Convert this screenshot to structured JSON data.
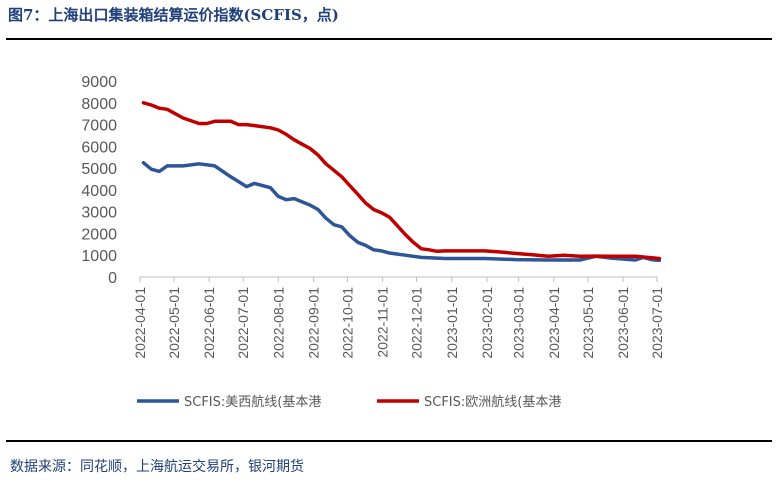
{
  "header": {
    "title": "图7：上海出口集装箱结算运价指数(SCFIS，点)"
  },
  "footer": {
    "source": "数据来源：同花顺，上海航运交易所，银河期货"
  },
  "colors": {
    "series_us_west": "#2e5597",
    "series_europe": "#c00000",
    "axis": "#bfbfbf",
    "text": "#595959"
  },
  "chart_data": {
    "type": "line",
    "title": "图7：上海出口集装箱结算运价指数(SCFIS，点)",
    "xlabel": "",
    "ylabel": "",
    "ylim": [
      0,
      9000
    ],
    "yticks": [
      "0",
      "1000",
      "2000",
      "3000",
      "4000",
      "5000",
      "6000",
      "7000",
      "8000",
      "9000"
    ],
    "grid": false,
    "legend_position": "bottom",
    "x_tick_labels": [
      "2022-04-01",
      "2022-05-01",
      "2022-06-01",
      "2022-07-01",
      "2022-08-01",
      "2022-09-01",
      "2022-10-01",
      "2022-11-01",
      "2022-12-01",
      "2023-01-01",
      "2023-02-01",
      "2023-03-01",
      "2023-04-01",
      "2023-05-01",
      "2023-06-01",
      "2023-07-01"
    ],
    "x_start": "2022-04-01",
    "x_end": "2023-07-01",
    "series": [
      {
        "name": "SCFIS:美西航线(基本港",
        "color": "#2e5597",
        "points": [
          [
            "2022-04-04",
            5250
          ],
          [
            "2022-04-11",
            4950
          ],
          [
            "2022-04-18",
            4850
          ],
          [
            "2022-04-25",
            5100
          ],
          [
            "2022-05-09",
            5100
          ],
          [
            "2022-05-23",
            5200
          ],
          [
            "2022-06-06",
            5100
          ],
          [
            "2022-06-20",
            4600
          ],
          [
            "2022-07-04",
            4150
          ],
          [
            "2022-07-11",
            4300
          ],
          [
            "2022-07-25",
            4100
          ],
          [
            "2022-08-01",
            3700
          ],
          [
            "2022-08-08",
            3550
          ],
          [
            "2022-08-15",
            3600
          ],
          [
            "2022-08-29",
            3300
          ],
          [
            "2022-09-05",
            3100
          ],
          [
            "2022-09-12",
            2700
          ],
          [
            "2022-09-19",
            2400
          ],
          [
            "2022-09-26",
            2300
          ],
          [
            "2022-10-03",
            1900
          ],
          [
            "2022-10-10",
            1600
          ],
          [
            "2022-10-17",
            1450
          ],
          [
            "2022-10-24",
            1250
          ],
          [
            "2022-10-31",
            1200
          ],
          [
            "2022-11-07",
            1100
          ],
          [
            "2022-11-21",
            1000
          ],
          [
            "2022-12-05",
            900
          ],
          [
            "2022-12-26",
            850
          ],
          [
            "2023-01-30",
            850
          ],
          [
            "2023-02-27",
            800
          ],
          [
            "2023-03-27",
            780
          ],
          [
            "2023-04-24",
            780
          ],
          [
            "2023-05-08",
            950
          ],
          [
            "2023-05-22",
            870
          ],
          [
            "2023-06-12",
            780
          ],
          [
            "2023-06-19",
            900
          ],
          [
            "2023-06-26",
            800
          ],
          [
            "2023-07-03",
            760
          ]
        ]
      },
      {
        "name": "SCFIS:欧洲航线(基本港",
        "color": "#c00000",
        "points": [
          [
            "2022-04-04",
            8000
          ],
          [
            "2022-04-11",
            7900
          ],
          [
            "2022-04-18",
            7750
          ],
          [
            "2022-04-25",
            7700
          ],
          [
            "2022-05-09",
            7300
          ],
          [
            "2022-05-23",
            7050
          ],
          [
            "2022-05-30",
            7050
          ],
          [
            "2022-06-06",
            7150
          ],
          [
            "2022-06-20",
            7150
          ],
          [
            "2022-06-27",
            7000
          ],
          [
            "2022-07-04",
            7000
          ],
          [
            "2022-07-11",
            6950
          ],
          [
            "2022-07-25",
            6850
          ],
          [
            "2022-08-01",
            6750
          ],
          [
            "2022-08-08",
            6550
          ],
          [
            "2022-08-15",
            6300
          ],
          [
            "2022-08-22",
            6100
          ],
          [
            "2022-08-29",
            5900
          ],
          [
            "2022-09-05",
            5600
          ],
          [
            "2022-09-12",
            5200
          ],
          [
            "2022-09-19",
            4900
          ],
          [
            "2022-09-26",
            4600
          ],
          [
            "2022-10-03",
            4200
          ],
          [
            "2022-10-10",
            3800
          ],
          [
            "2022-10-17",
            3400
          ],
          [
            "2022-10-24",
            3100
          ],
          [
            "2022-10-31",
            2950
          ],
          [
            "2022-11-07",
            2750
          ],
          [
            "2022-11-14",
            2350
          ],
          [
            "2022-11-21",
            1950
          ],
          [
            "2022-11-28",
            1600
          ],
          [
            "2022-12-05",
            1300
          ],
          [
            "2022-12-12",
            1250
          ],
          [
            "2022-12-19",
            1180
          ],
          [
            "2022-12-26",
            1200
          ],
          [
            "2023-01-30",
            1200
          ],
          [
            "2023-02-13",
            1150
          ],
          [
            "2023-02-27",
            1080
          ],
          [
            "2023-03-13",
            1020
          ],
          [
            "2023-03-27",
            950
          ],
          [
            "2023-04-03",
            980
          ],
          [
            "2023-04-10",
            1000
          ],
          [
            "2023-04-24",
            950
          ],
          [
            "2023-05-08",
            960
          ],
          [
            "2023-05-22",
            950
          ],
          [
            "2023-06-12",
            950
          ],
          [
            "2023-06-26",
            880
          ],
          [
            "2023-07-03",
            850
          ]
        ]
      }
    ]
  }
}
